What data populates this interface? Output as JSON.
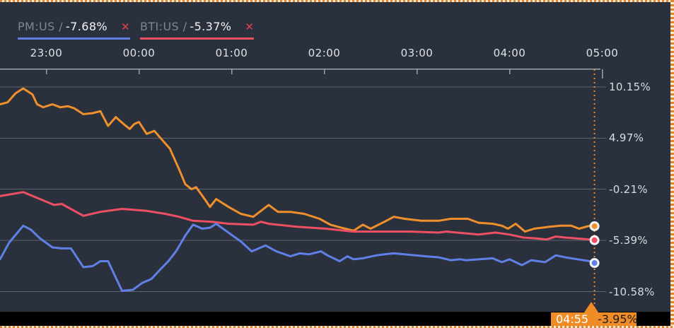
{
  "colors": {
    "background": "#2a313c",
    "gridline": "#5c646f",
    "axis_line": "#9ba2ac",
    "x_label": "#dfe3e8",
    "y_label": "#d8dce2",
    "legend_ticker": "#7d8695",
    "legend_value": "#f3f5f7",
    "close_icon": "#e2414f",
    "series_orange": "#f0902c",
    "series_pink": "#ef4f63",
    "series_blue": "#6080e8",
    "cursor": "#ec8b2b",
    "tooltip_bg": "#f08c28",
    "tooltip_time_text": "#ffffff",
    "tooltip_value_text": "#1c1c1c",
    "bottom_bar": "#000000",
    "marker_ring": "#f2f3f4"
  },
  "legend": {
    "close_glyph": "✕",
    "items": [
      {
        "label": "PM:US /",
        "value": "-7.68%",
        "line_color": "#6080e8",
        "id": "pm-us"
      },
      {
        "label": "BTI:US /",
        "value": "-5.37%",
        "line_color": "#ef4f63",
        "id": "bti-us"
      }
    ]
  },
  "tooltip": {
    "time": "04:55",
    "value": "-3.95%"
  },
  "chart_data": {
    "type": "line",
    "title": "",
    "xlabel": "",
    "ylabel": "",
    "grid": true,
    "legend_position": "top-left-bar",
    "x_axis": {
      "tick_labels": [
        "23:00",
        "00:00",
        "01:00",
        "02:00",
        "03:00",
        "04:00",
        "05:00"
      ],
      "start": "22:30",
      "end": "04:55"
    },
    "y_axis": {
      "unit": "%",
      "ylim": [
        -12.6,
        11.9
      ],
      "ticks": [
        {
          "label": "10.15%",
          "value": 10.15
        },
        {
          "label": "4.97%",
          "value": 4.97
        },
        {
          "label": "-0.21%",
          "value": -0.21
        },
        {
          "label": "-5.39%",
          "value": -5.39
        },
        {
          "label": "-10.58%",
          "value": -10.58
        }
      ]
    },
    "cursor": {
      "time": "04:55"
    },
    "series": [
      {
        "id": "orange",
        "ticker": "",
        "color": "#f0902c",
        "last_value": -3.95,
        "points": [
          [
            "22:30",
            8.4
          ],
          [
            "22:35",
            8.6
          ],
          [
            "22:40",
            9.5
          ],
          [
            "22:45",
            10.0
          ],
          [
            "22:51",
            9.4
          ],
          [
            "22:54",
            8.4
          ],
          [
            "22:58",
            8.1
          ],
          [
            "23:04",
            8.4
          ],
          [
            "23:09",
            8.1
          ],
          [
            "23:14",
            8.2
          ],
          [
            "23:18",
            8.0
          ],
          [
            "23:24",
            7.4
          ],
          [
            "23:30",
            7.5
          ],
          [
            "23:35",
            7.7
          ],
          [
            "23:40",
            6.2
          ],
          [
            "23:45",
            7.1
          ],
          [
            "23:50",
            6.4
          ],
          [
            "23:54",
            5.9
          ],
          [
            "23:57",
            6.4
          ],
          [
            "00:00",
            6.6
          ],
          [
            "00:05",
            5.4
          ],
          [
            "00:10",
            5.7
          ],
          [
            "00:15",
            4.8
          ],
          [
            "00:20",
            3.9
          ],
          [
            "00:26",
            1.8
          ],
          [
            "00:30",
            0.3
          ],
          [
            "00:34",
            -0.2
          ],
          [
            "00:37",
            0.0
          ],
          [
            "00:43",
            -1.3
          ],
          [
            "00:46",
            -2.0
          ],
          [
            "00:50",
            -1.2
          ],
          [
            "00:58",
            -2.0
          ],
          [
            "01:06",
            -2.7
          ],
          [
            "01:14",
            -3.0
          ],
          [
            "01:24",
            -1.8
          ],
          [
            "01:30",
            -2.5
          ],
          [
            "01:38",
            -2.5
          ],
          [
            "01:47",
            -2.7
          ],
          [
            "01:57",
            -3.2
          ],
          [
            "02:04",
            -3.8
          ],
          [
            "02:11",
            -4.1
          ],
          [
            "02:19",
            -4.4
          ],
          [
            "02:25",
            -3.8
          ],
          [
            "02:30",
            -4.2
          ],
          [
            "02:39",
            -3.5
          ],
          [
            "02:45",
            -3.0
          ],
          [
            "02:52",
            -3.2
          ],
          [
            "03:03",
            -3.4
          ],
          [
            "03:14",
            -3.4
          ],
          [
            "03:22",
            -3.2
          ],
          [
            "03:33",
            -3.2
          ],
          [
            "03:40",
            -3.6
          ],
          [
            "03:49",
            -3.7
          ],
          [
            "03:55",
            -3.9
          ],
          [
            "03:59",
            -4.2
          ],
          [
            "04:04",
            -3.7
          ],
          [
            "04:10",
            -4.5
          ],
          [
            "04:16",
            -4.2
          ],
          [
            "04:26",
            -4.0
          ],
          [
            "04:33",
            -3.9
          ],
          [
            "04:40",
            -3.9
          ],
          [
            "04:45",
            -4.2
          ],
          [
            "04:52",
            -3.9
          ],
          [
            "04:55",
            -3.95
          ]
        ]
      },
      {
        "id": "pink",
        "ticker": "BTI:US",
        "color": "#ef4f63",
        "last_value": -5.37,
        "points": [
          [
            "22:30",
            -0.9
          ],
          [
            "22:45",
            -0.5
          ],
          [
            "23:05",
            -1.8
          ],
          [
            "23:10",
            -1.7
          ],
          [
            "23:24",
            -2.9
          ],
          [
            "23:35",
            -2.5
          ],
          [
            "23:49",
            -2.2
          ],
          [
            "00:05",
            -2.4
          ],
          [
            "00:17",
            -2.7
          ],
          [
            "00:26",
            -3.0
          ],
          [
            "00:35",
            -3.4
          ],
          [
            "00:47",
            -3.5
          ],
          [
            "00:58",
            -3.7
          ],
          [
            "01:14",
            -3.8
          ],
          [
            "01:19",
            -3.5
          ],
          [
            "01:24",
            -3.7
          ],
          [
            "01:42",
            -4.0
          ],
          [
            "02:01",
            -4.2
          ],
          [
            "02:19",
            -4.5
          ],
          [
            "02:37",
            -4.5
          ],
          [
            "02:56",
            -4.5
          ],
          [
            "03:14",
            -4.6
          ],
          [
            "03:19",
            -4.5
          ],
          [
            "03:40",
            -4.8
          ],
          [
            "03:51",
            -4.6
          ],
          [
            "04:00",
            -4.8
          ],
          [
            "04:09",
            -5.1
          ],
          [
            "04:18",
            -5.2
          ],
          [
            "04:24",
            -5.3
          ],
          [
            "04:30",
            -5.0
          ],
          [
            "04:36",
            -5.1
          ],
          [
            "04:44",
            -5.2
          ],
          [
            "04:52",
            -5.3
          ],
          [
            "04:55",
            -5.37
          ]
        ]
      },
      {
        "id": "blue",
        "ticker": "PM:US",
        "color": "#6080e8",
        "last_value": -7.68,
        "points": [
          [
            "22:30",
            -7.3
          ],
          [
            "22:36",
            -5.6
          ],
          [
            "22:45",
            -3.9
          ],
          [
            "22:50",
            -4.3
          ],
          [
            "22:56",
            -5.2
          ],
          [
            "23:04",
            -6.1
          ],
          [
            "23:10",
            -6.2
          ],
          [
            "23:16",
            -6.2
          ],
          [
            "23:24",
            -8.1
          ],
          [
            "23:30",
            -8.0
          ],
          [
            "23:35",
            -7.5
          ],
          [
            "23:40",
            -7.5
          ],
          [
            "23:49",
            -10.5
          ],
          [
            "23:56",
            -10.4
          ],
          [
            "00:02",
            -9.7
          ],
          [
            "00:08",
            -9.3
          ],
          [
            "00:14",
            -8.3
          ],
          [
            "00:19",
            -7.5
          ],
          [
            "00:24",
            -6.5
          ],
          [
            "00:30",
            -4.9
          ],
          [
            "00:35",
            -3.8
          ],
          [
            "00:41",
            -4.2
          ],
          [
            "00:46",
            -4.1
          ],
          [
            "00:50",
            -3.7
          ],
          [
            "00:57",
            -4.5
          ],
          [
            "01:06",
            -5.5
          ],
          [
            "01:13",
            -6.5
          ],
          [
            "01:22",
            -5.9
          ],
          [
            "01:29",
            -6.5
          ],
          [
            "01:38",
            -7.0
          ],
          [
            "01:44",
            -6.7
          ],
          [
            "01:50",
            -6.8
          ],
          [
            "01:58",
            -6.5
          ],
          [
            "02:02",
            -6.9
          ],
          [
            "02:10",
            -7.5
          ],
          [
            "02:15",
            -7.0
          ],
          [
            "02:19",
            -7.3
          ],
          [
            "02:25",
            -7.2
          ],
          [
            "02:34",
            -6.9
          ],
          [
            "02:39",
            -6.8
          ],
          [
            "02:45",
            -6.7
          ],
          [
            "02:52",
            -6.8
          ],
          [
            "02:59",
            -6.9
          ],
          [
            "03:06",
            -7.0
          ],
          [
            "03:14",
            -7.1
          ],
          [
            "03:22",
            -7.4
          ],
          [
            "03:28",
            -7.3
          ],
          [
            "03:32",
            -7.4
          ],
          [
            "03:49",
            -7.2
          ],
          [
            "03:55",
            -7.6
          ],
          [
            "04:00",
            -7.3
          ],
          [
            "04:08",
            -7.9
          ],
          [
            "04:14",
            -7.4
          ],
          [
            "04:23",
            -7.6
          ],
          [
            "04:30",
            -6.9
          ],
          [
            "04:36",
            -7.1
          ],
          [
            "04:44",
            -7.3
          ],
          [
            "04:52",
            -7.5
          ],
          [
            "04:55",
            -7.68
          ]
        ]
      }
    ]
  }
}
